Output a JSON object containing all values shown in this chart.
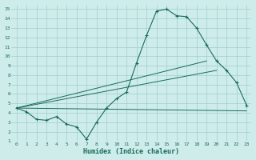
{
  "title": "",
  "xlabel": "Humidex (Indice chaleur)",
  "bg_color": "#ceecea",
  "grid_color": "#9ecfcc",
  "line_color": "#1a6b5a",
  "xlim": [
    -0.5,
    23.5
  ],
  "ylim": [
    1,
    15.5
  ],
  "xticks": [
    0,
    1,
    2,
    3,
    4,
    5,
    6,
    7,
    8,
    9,
    10,
    11,
    12,
    13,
    14,
    15,
    16,
    17,
    18,
    19,
    20,
    21,
    22,
    23
  ],
  "yticks": [
    1,
    2,
    3,
    4,
    5,
    6,
    7,
    8,
    9,
    10,
    11,
    12,
    13,
    14,
    15
  ],
  "main_curve": {
    "x": [
      0,
      1,
      2,
      3,
      4,
      5,
      6,
      7,
      8,
      9,
      10,
      11,
      12,
      13,
      14,
      15,
      16,
      17,
      18,
      19,
      20,
      21,
      22,
      23
    ],
    "y": [
      4.5,
      4.1,
      3.3,
      3.2,
      3.6,
      2.8,
      2.5,
      1.2,
      3.0,
      4.5,
      5.5,
      6.2,
      9.3,
      12.2,
      14.8,
      15.0,
      14.3,
      14.2,
      13.0,
      11.2,
      9.5,
      8.5,
      7.2,
      4.8
    ]
  },
  "line1": {
    "comment": "straight line from 0,4.5 to 19,9.5",
    "x": [
      0,
      19
    ],
    "y": [
      4.5,
      9.5
    ]
  },
  "line2": {
    "comment": "straight line from 0,4.5 to 20,8.5",
    "x": [
      0,
      20
    ],
    "y": [
      4.5,
      8.5
    ]
  },
  "line3": {
    "x": [
      0,
      23
    ],
    "y": [
      4.5,
      4.2
    ]
  }
}
